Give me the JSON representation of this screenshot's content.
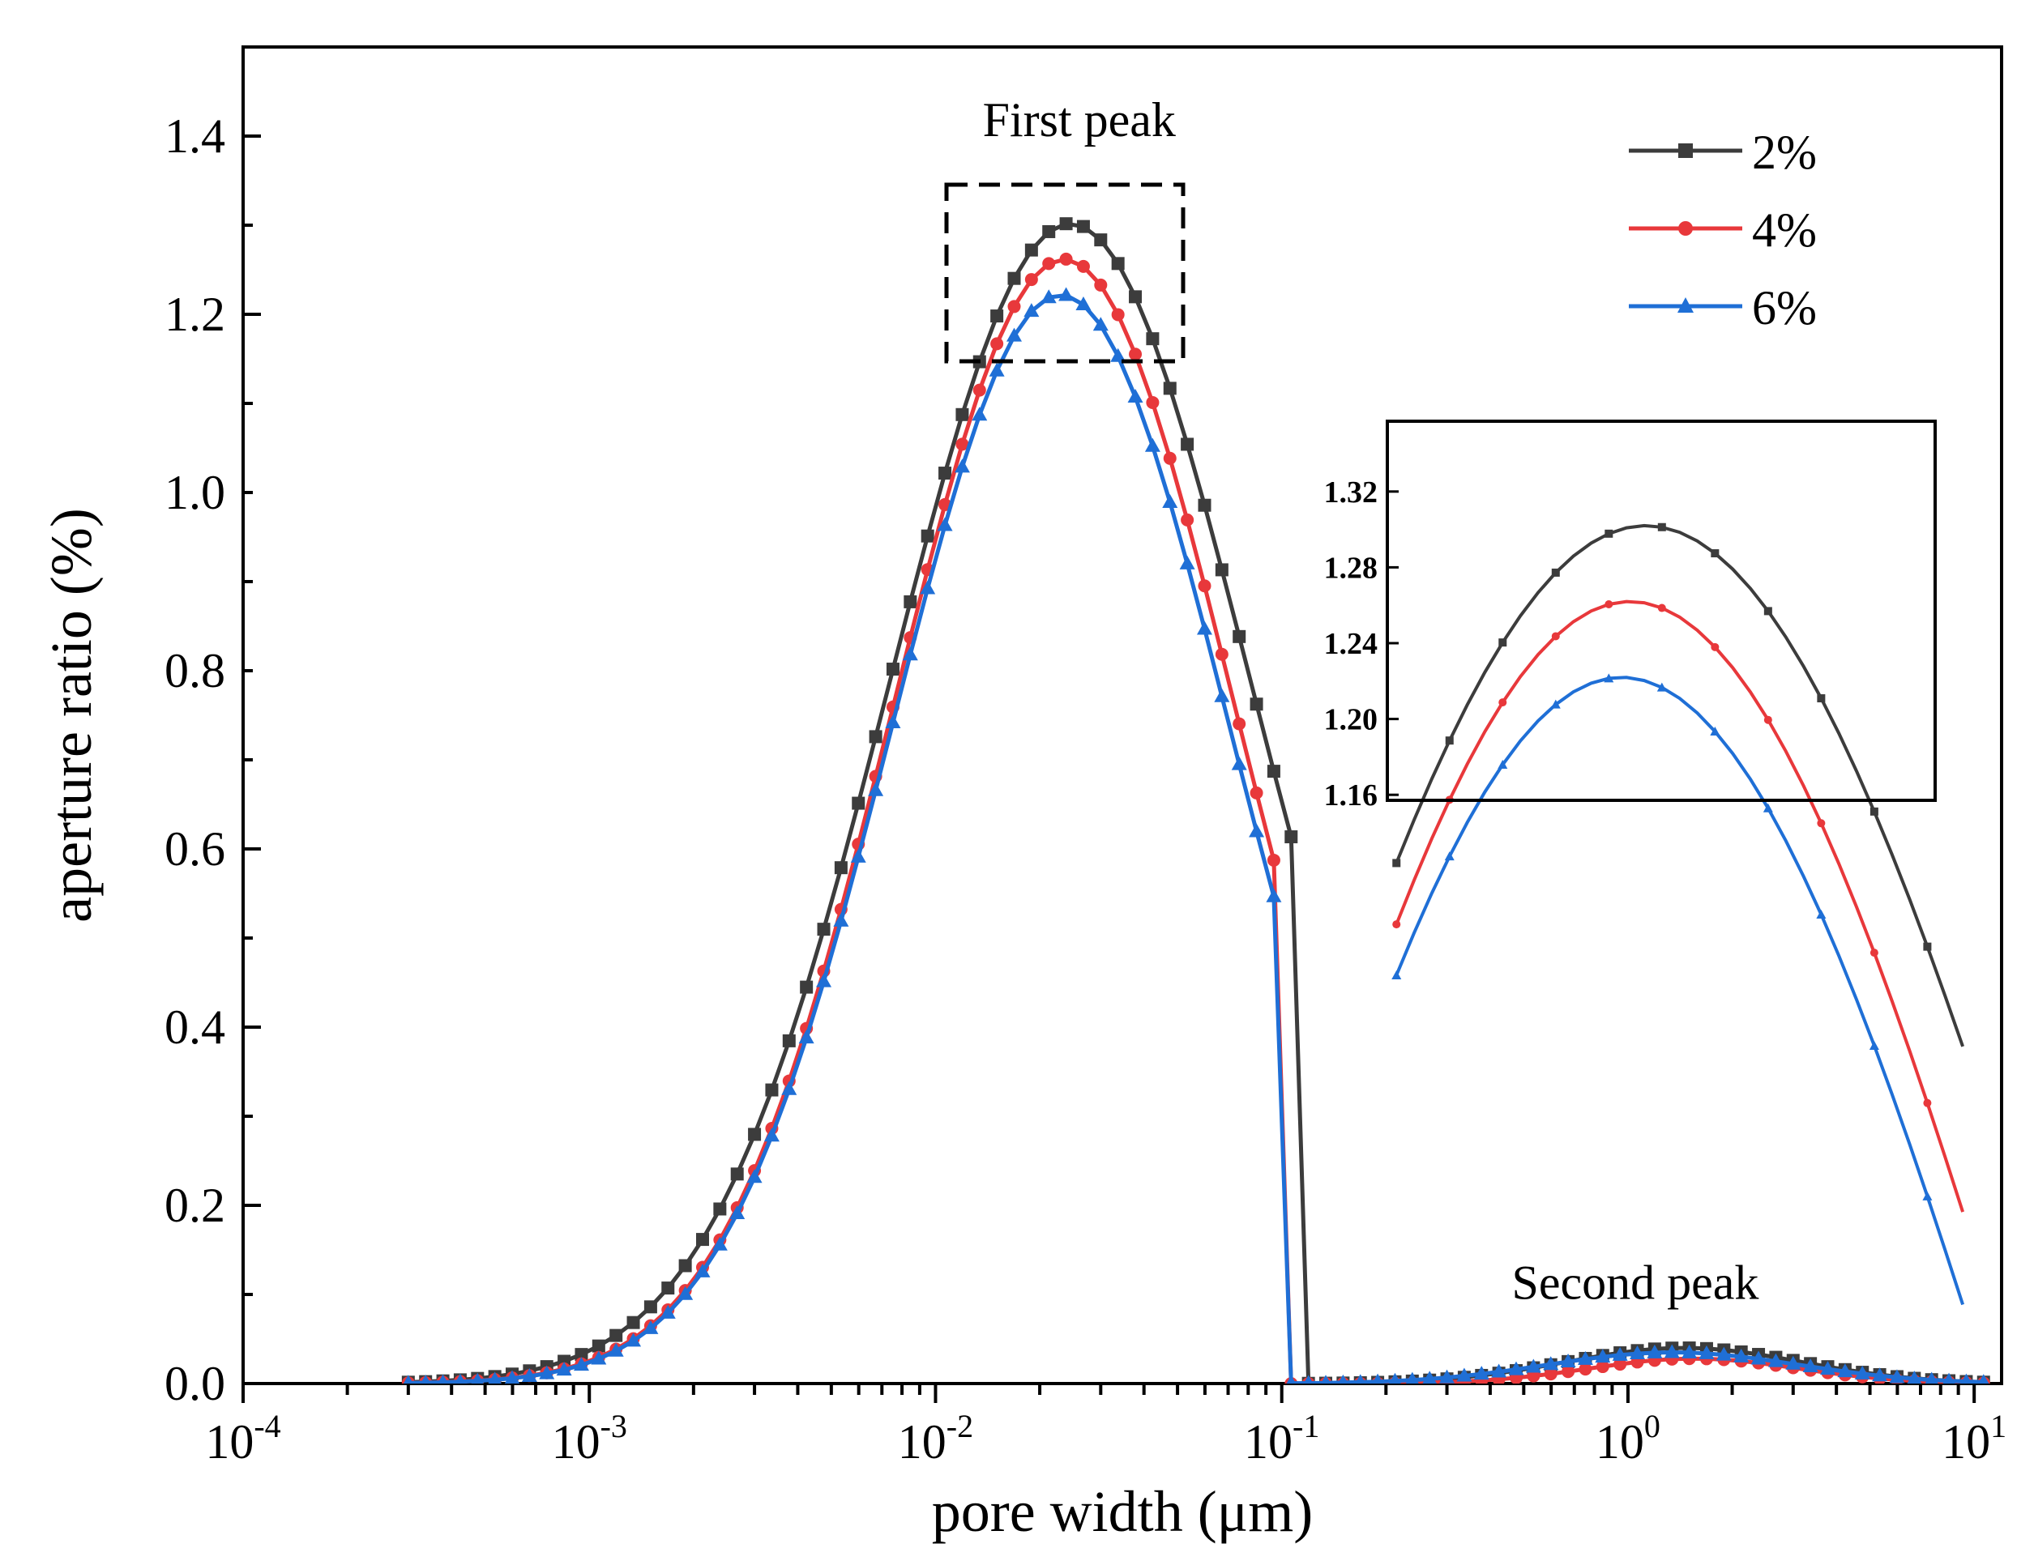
{
  "chart_data": {
    "type": "line",
    "xlabel": "pore width (μm)",
    "ylabel": "aperture ratio (%)",
    "x_scale": "log",
    "xlim": [
      0.0001,
      12
    ],
    "ylim": [
      0,
      1.5
    ],
    "x_ticks": [
      {
        "value": 0.0001,
        "base": "10",
        "exp": "-4"
      },
      {
        "value": 0.001,
        "base": "10",
        "exp": "-3"
      },
      {
        "value": 0.01,
        "base": "10",
        "exp": "-2"
      },
      {
        "value": 0.1,
        "base": "10",
        "exp": "-1"
      },
      {
        "value": 1,
        "base": "10",
        "exp": "0"
      },
      {
        "value": 10,
        "base": "10",
        "exp": "1"
      }
    ],
    "y_ticks": [
      {
        "value": 0,
        "label": "0.0"
      },
      {
        "value": 0.2,
        "label": "0.2"
      },
      {
        "value": 0.4,
        "label": "0.4"
      },
      {
        "value": 0.6,
        "label": "0.6"
      },
      {
        "value": 0.8,
        "label": "0.8"
      },
      {
        "value": 1.0,
        "label": "1.0"
      },
      {
        "value": 1.2,
        "label": "1.2"
      },
      {
        "value": 1.4,
        "label": "1.4"
      }
    ],
    "grid": false,
    "legend_position": "top-right",
    "series": [
      {
        "name": "2%",
        "color": "#3c3c3c",
        "marker": "square",
        "peak1": {
          "mu": 0.0245,
          "sigma": 0.52,
          "amp": 1.302
        },
        "peak2": {
          "mu": 1.45,
          "sigma": 0.34,
          "amp": 0.04
        },
        "cutoff": 0.115
      },
      {
        "name": "4%",
        "color": "#e8383b",
        "marker": "circle",
        "peak1": {
          "mu": 0.0235,
          "sigma": 0.49,
          "amp": 1.262
        },
        "peak2": {
          "mu": 1.55,
          "sigma": 0.3,
          "amp": 0.028
        },
        "cutoff": 0.095
      },
      {
        "name": "6%",
        "color": "#1f6fd6",
        "marker": "triangle",
        "peak1": {
          "mu": 0.023,
          "sigma": 0.485,
          "amp": 1.222
        },
        "peak2": {
          "mu": 1.35,
          "sigma": 0.36,
          "amp": 0.035
        },
        "cutoff": 0.1
      }
    ],
    "annotations": [
      {
        "text": "First peak",
        "x": 0.026,
        "y": 1.4
      },
      {
        "text": "Second peak",
        "x": 1.05,
        "y": 0.095
      }
    ],
    "inset": {
      "ylim": [
        1.14,
        1.34
      ],
      "xlim": [
        0.0125,
        0.052
      ],
      "y_ticks": [
        {
          "value": 1.16,
          "label": "1.16"
        },
        {
          "value": 1.2,
          "label": "1.20"
        },
        {
          "value": 1.24,
          "label": "1.24"
        },
        {
          "value": 1.28,
          "label": "1.28"
        },
        {
          "value": 1.32,
          "label": "1.32"
        }
      ]
    }
  }
}
